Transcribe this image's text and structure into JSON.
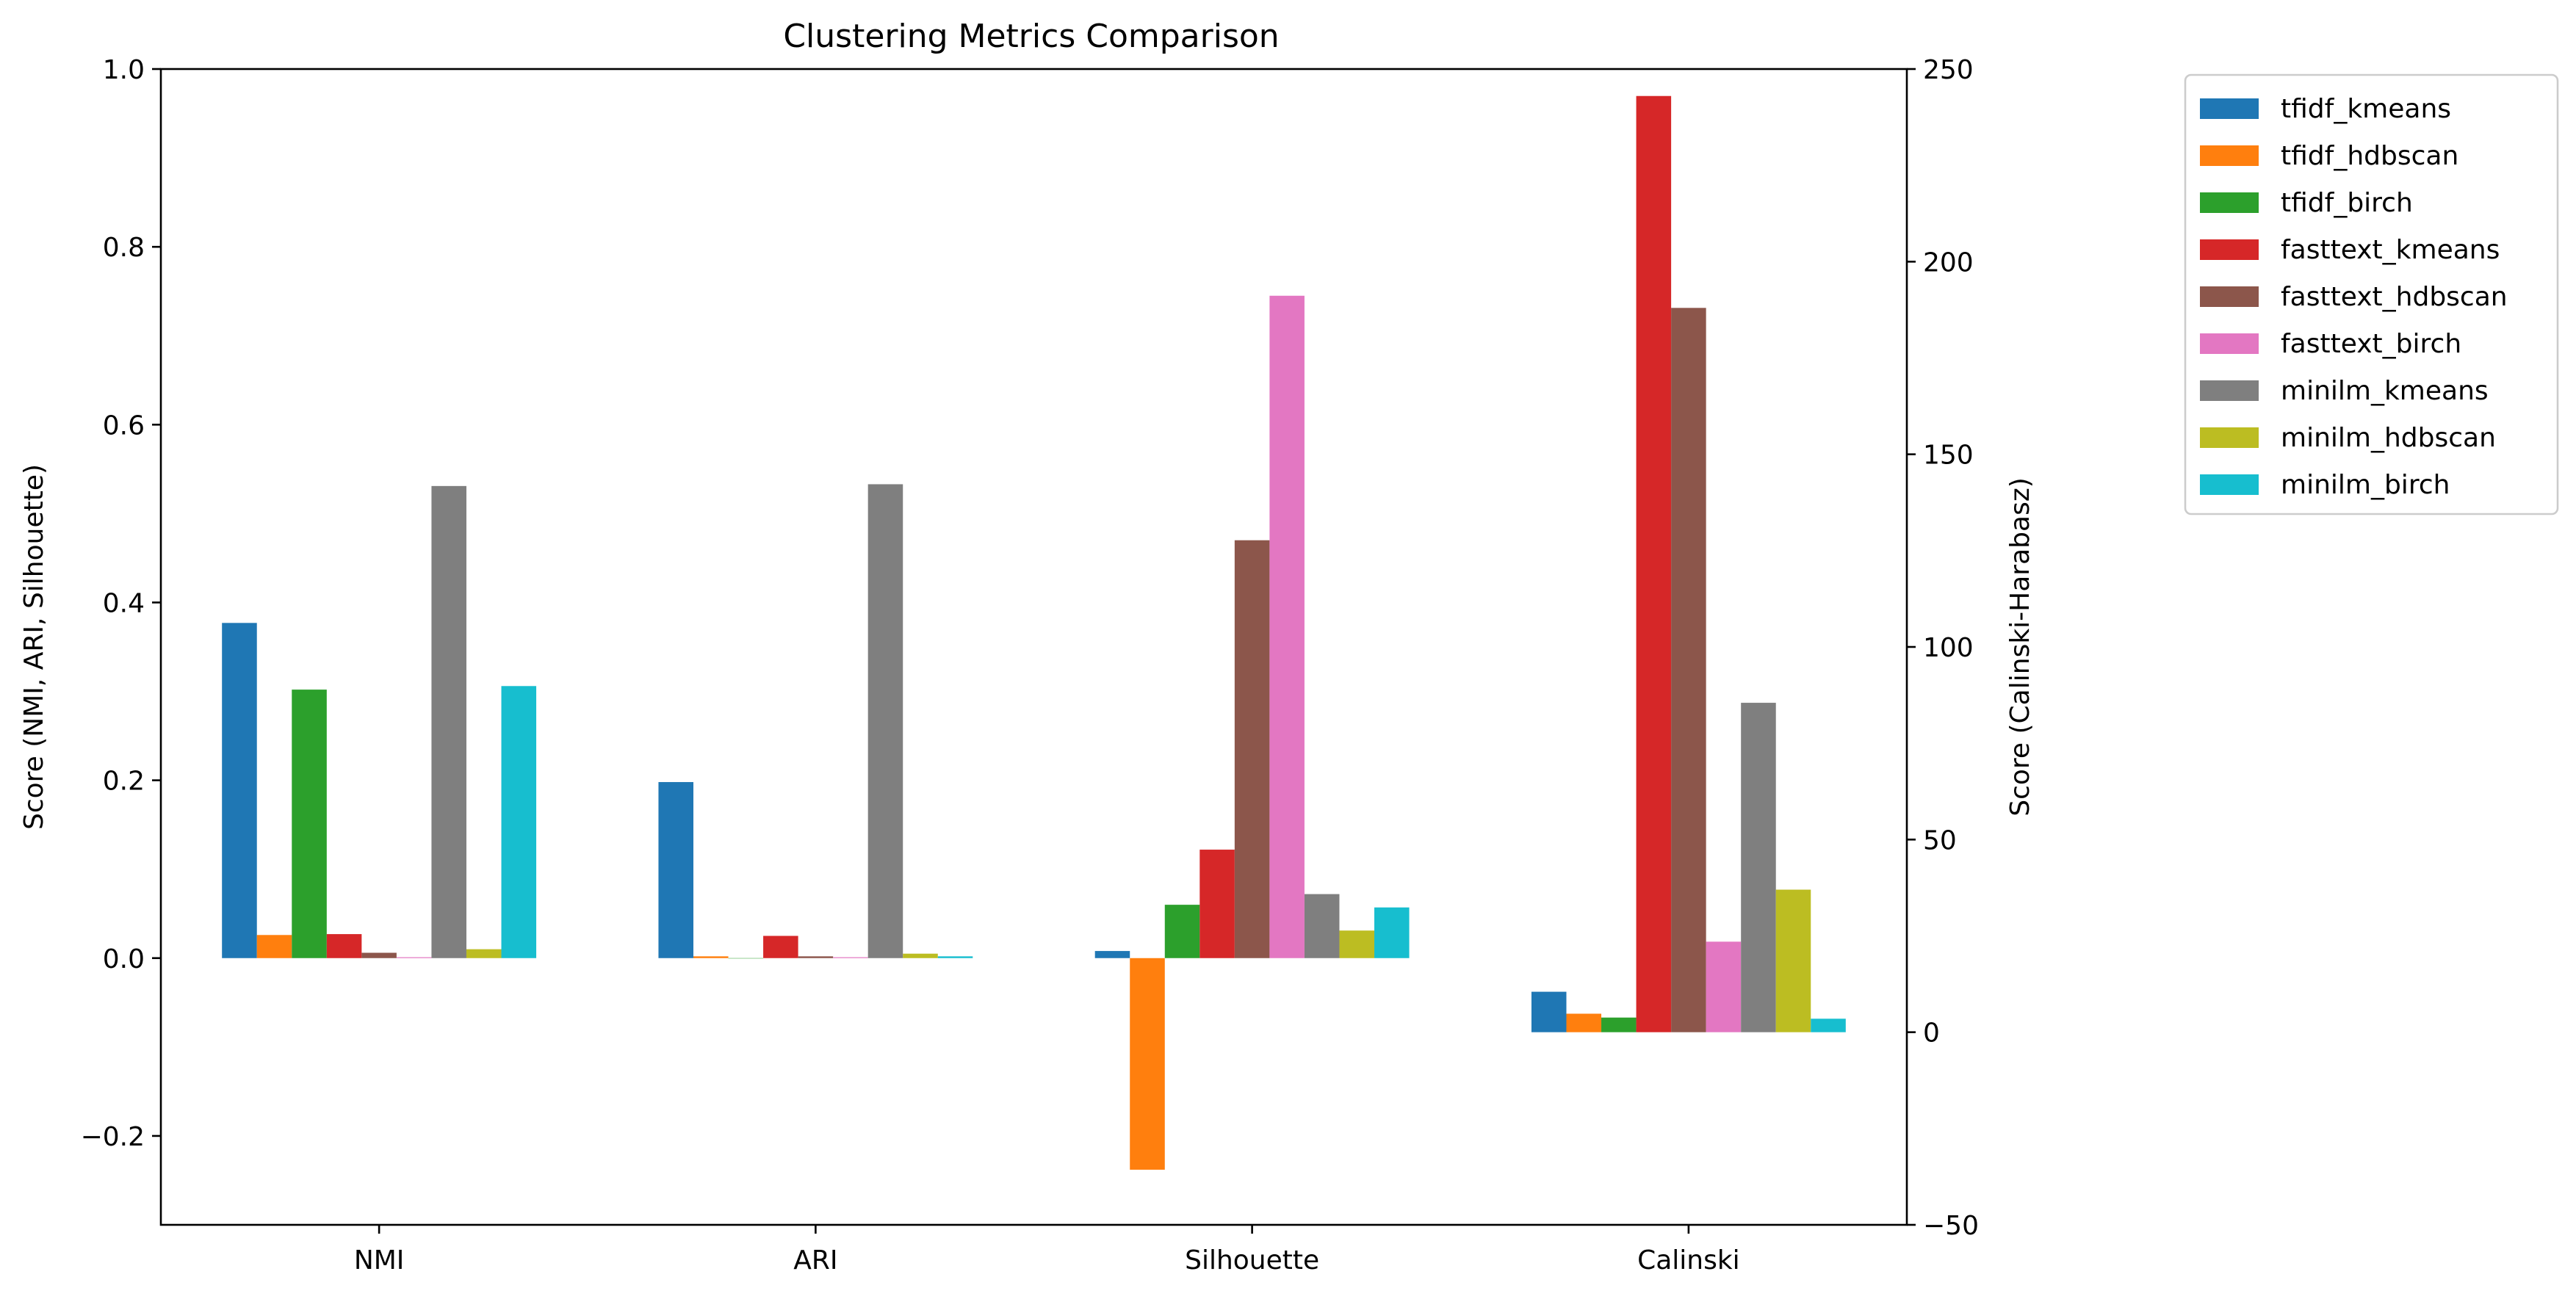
{
  "chart_data": {
    "type": "bar",
    "title": "Clustering Metrics Comparison",
    "categories": [
      "NMI",
      "ARI",
      "Silhouette",
      "Calinski"
    ],
    "ylabel_left": "Score (NMI, ARI, Silhouette)",
    "ylabel_right": "Score (Calinski-Harabasz)",
    "ylim_left": [
      -0.3,
      1.0
    ],
    "ylim_right": [
      -50,
      250
    ],
    "yticks_left": [
      "−0.2",
      "0.0",
      "0.2",
      "0.4",
      "0.6",
      "0.8",
      "1.0"
    ],
    "yticks_right": [
      "−50",
      "0",
      "50",
      "100",
      "150",
      "200",
      "250"
    ],
    "yticks_left_values": [
      -0.2,
      0.0,
      0.2,
      0.4,
      0.6,
      0.8,
      1.0
    ],
    "yticks_right_values": [
      -50,
      0,
      50,
      100,
      150,
      200,
      250
    ],
    "legend_position": "outside upper right",
    "grid": false,
    "series": [
      {
        "name": "tfidf_kmeans",
        "color": "#1f77b4",
        "values": [
          0.377,
          0.198,
          0.008,
          10.5
        ]
      },
      {
        "name": "tfidf_hdbscan",
        "color": "#ff7f0e",
        "values": [
          0.026,
          0.002,
          -0.238,
          4.8
        ]
      },
      {
        "name": "tfidf_birch",
        "color": "#2ca02c",
        "values": [
          0.302,
          0.0,
          0.06,
          3.8
        ]
      },
      {
        "name": "fasttext_kmeans",
        "color": "#d62728",
        "values": [
          0.027,
          0.025,
          0.122,
          243
        ]
      },
      {
        "name": "fasttext_hdbscan",
        "color": "#8c564b",
        "values": [
          0.006,
          0.002,
          0.47,
          188
        ]
      },
      {
        "name": "fasttext_birch",
        "color": "#e377c2",
        "values": [
          0.001,
          0.001,
          0.745,
          23.5
        ]
      },
      {
        "name": "minilm_kmeans",
        "color": "#7f7f7f",
        "values": [
          0.531,
          0.533,
          0.072,
          85.5
        ]
      },
      {
        "name": "minilm_hdbscan",
        "color": "#bcbd22",
        "values": [
          0.01,
          0.005,
          0.031,
          37
        ]
      },
      {
        "name": "minilm_birch",
        "color": "#17becf",
        "values": [
          0.306,
          0.002,
          0.057,
          3.5
        ]
      }
    ]
  }
}
